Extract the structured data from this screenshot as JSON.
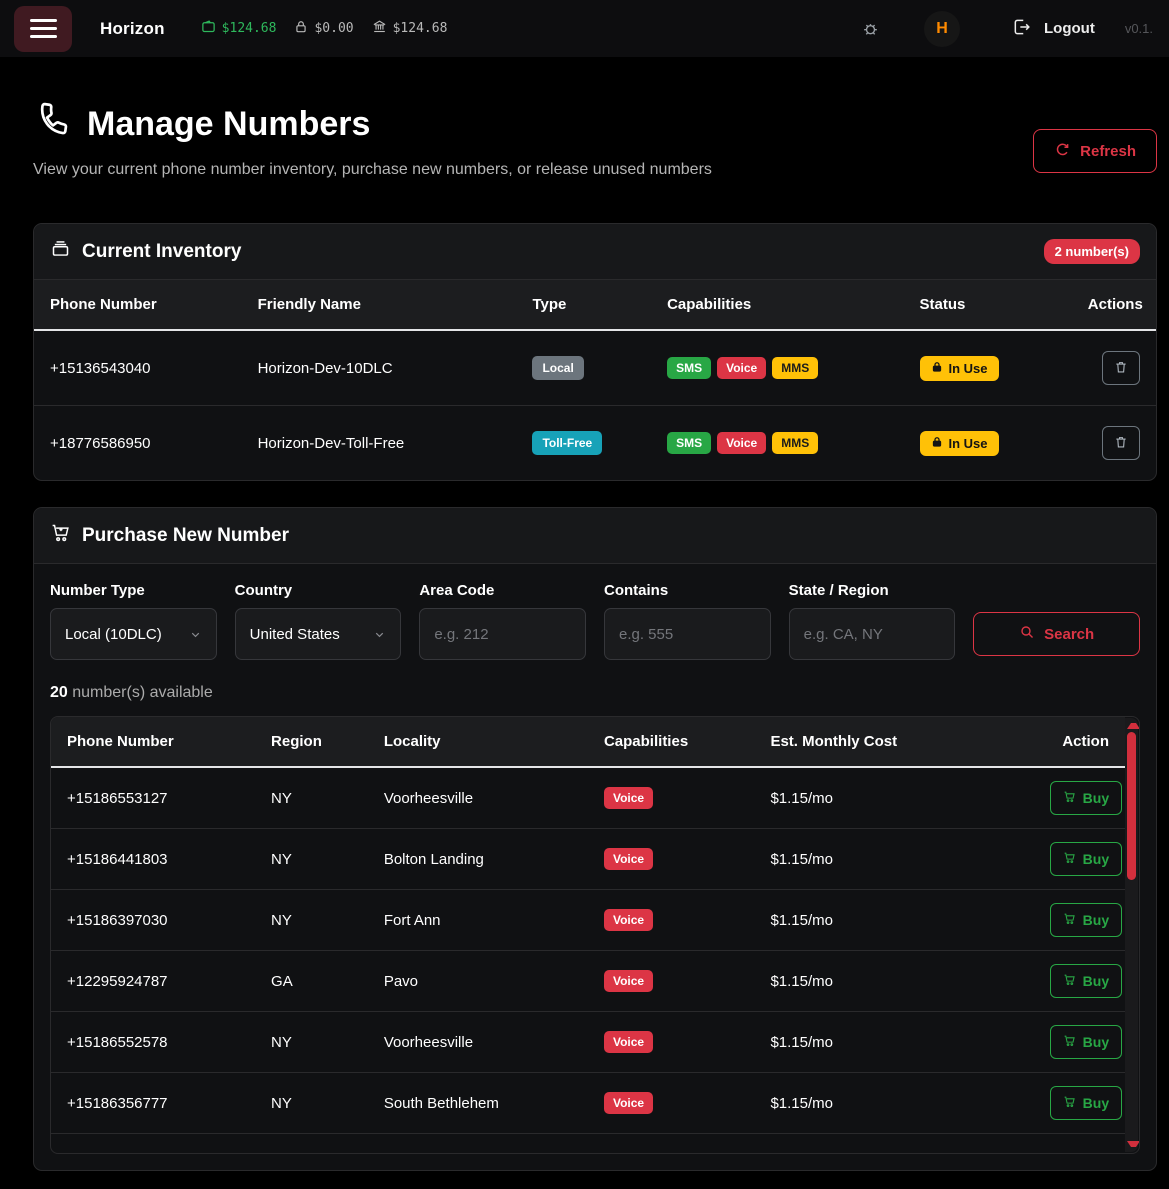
{
  "navbar": {
    "brand": "Horizon",
    "wallet_balance": "$124.68",
    "locked_balance": "$0.00",
    "bank_balance": "$124.68",
    "logo_letter": "H",
    "logout_label": "Logout",
    "version": "v0.1."
  },
  "page_header": {
    "title": "Manage Numbers",
    "subtitle": "View your current phone number inventory, purchase new numbers, or release unused numbers",
    "refresh_label": "Refresh"
  },
  "inventory": {
    "title": "Current Inventory",
    "count_badge": "2 number(s)",
    "columns": [
      "Phone Number",
      "Friendly Name",
      "Type",
      "Capabilities",
      "Status",
      "Actions"
    ],
    "rows": [
      {
        "phone": "+15136543040",
        "name": "Horizon-Dev-10DLC",
        "type": "Local",
        "capabilities": [
          "SMS",
          "Voice",
          "MMS"
        ],
        "status": "In Use"
      },
      {
        "phone": "+18776586950",
        "name": "Horizon-Dev-Toll-Free",
        "type": "Toll-Free",
        "capabilities": [
          "SMS",
          "Voice",
          "MMS"
        ],
        "status": "In Use"
      }
    ]
  },
  "purchase": {
    "title": "Purchase New Number",
    "filters": {
      "number_type": {
        "label": "Number Type",
        "value": "Local (10DLC)"
      },
      "country": {
        "label": "Country",
        "value": "United States"
      },
      "area_code": {
        "label": "Area Code",
        "placeholder": "e.g. 212"
      },
      "contains": {
        "label": "Contains",
        "placeholder": "e.g. 555"
      },
      "state": {
        "label": "State / Region",
        "placeholder": "e.g. CA, NY"
      }
    },
    "search_label": "Search",
    "available_count": "20",
    "available_suffix": " number(s) available",
    "columns": [
      "Phone Number",
      "Region",
      "Locality",
      "Capabilities",
      "Est. Monthly Cost",
      "Action"
    ],
    "buy_label": "Buy",
    "results": [
      {
        "phone": "+15186553127",
        "region": "NY",
        "locality": "Voorheesville",
        "capability": "Voice",
        "cost": "$1.15/mo"
      },
      {
        "phone": "+15186441803",
        "region": "NY",
        "locality": "Bolton Landing",
        "capability": "Voice",
        "cost": "$1.15/mo"
      },
      {
        "phone": "+15186397030",
        "region": "NY",
        "locality": "Fort Ann",
        "capability": "Voice",
        "cost": "$1.15/mo"
      },
      {
        "phone": "+12295924787",
        "region": "GA",
        "locality": "Pavo",
        "capability": "Voice",
        "cost": "$1.15/mo"
      },
      {
        "phone": "+15186552578",
        "region": "NY",
        "locality": "Voorheesville",
        "capability": "Voice",
        "cost": "$1.15/mo"
      },
      {
        "phone": "+15186356777",
        "region": "NY",
        "locality": "South Bethlehem",
        "capability": "Voice",
        "cost": "$1.15/mo"
      }
    ]
  },
  "colors": {
    "accent_red": "#dc3545",
    "accent_green": "#28a745",
    "accent_yellow": "#ffc107",
    "accent_teal": "#17a2b8",
    "badge_gray": "#6c757d",
    "brand_orange": "#ff8a00",
    "money_green": "#2eb85c"
  }
}
